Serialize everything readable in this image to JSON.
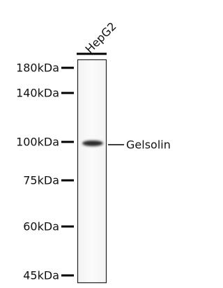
{
  "lane_label": "HepG2",
  "markers": [
    "180kDa",
    "140kDa",
    "100kDa",
    "75kDa",
    "60kDa",
    "45kDa"
  ],
  "band_label": "Gelsolin"
}
